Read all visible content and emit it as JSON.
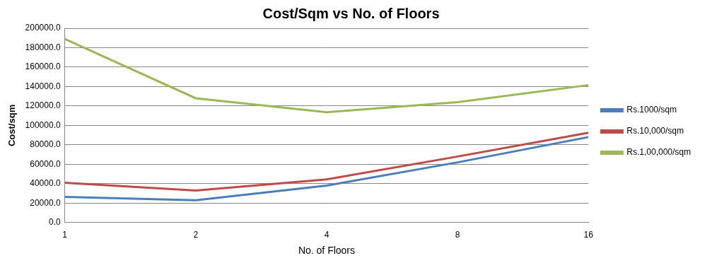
{
  "chart_data": {
    "type": "line",
    "title": "Cost/Sqm vs No. of Floors",
    "x_label": "No. of Floors",
    "y_label": "Cost/sqm",
    "categories": [
      "1",
      "2",
      "4",
      "8",
      "16"
    ],
    "series": [
      {
        "name": "Rs.1000/sqm",
        "color": "#4a7ebb",
        "values": [
          26500,
          23000,
          38000,
          62000,
          88000
        ]
      },
      {
        "name": "Rs.10,000/sqm",
        "color": "#be4b48",
        "values": [
          41000,
          33000,
          44500,
          68000,
          92500
        ]
      },
      {
        "name": "Rs.1,00,000/sqm",
        "color": "#98b954",
        "values": [
          189000,
          128000,
          113500,
          124000,
          141500
        ]
      }
    ],
    "ylim": [
      0,
      200000
    ],
    "yticks": [
      {
        "value": 0,
        "label": "0.0"
      },
      {
        "value": 20000,
        "label": "20000.0"
      },
      {
        "value": 40000,
        "label": "40000.0"
      },
      {
        "value": 60000,
        "label": "60000.0"
      },
      {
        "value": 80000,
        "label": "80000.0"
      },
      {
        "value": 100000,
        "label": "100000.0"
      },
      {
        "value": 120000,
        "label": "120000.0"
      },
      {
        "value": 140000,
        "label": "140000.0"
      },
      {
        "value": 160000,
        "label": "160000.0"
      },
      {
        "value": 180000,
        "label": "180000.0"
      },
      {
        "value": 200000,
        "label": "200000.0"
      }
    ],
    "grid": true,
    "legend": "right",
    "marker": "none"
  }
}
